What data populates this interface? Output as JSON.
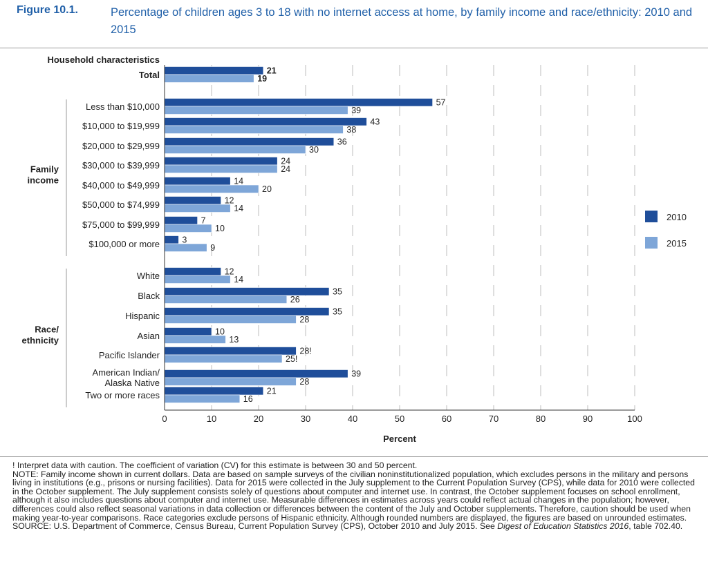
{
  "figure": {
    "number": "Figure 10.1.",
    "title": "Percentage of children ages 3 to 18 with no internet access at home, by family income and race/ethnicity: 2010 and 2015"
  },
  "colors": {
    "y2010": "#1f4e9a",
    "y2015": "#7ea6d8",
    "gridline": "#bdbdbd",
    "title": "#1f5fa8"
  },
  "chart_data": {
    "type": "bar",
    "orientation": "horizontal",
    "title": "",
    "xlabel": "Percent",
    "ylabel": "Household characteristics",
    "xlim": [
      0,
      100
    ],
    "xticks": [
      0,
      10,
      20,
      30,
      40,
      50,
      60,
      70,
      80,
      90,
      100
    ],
    "grid": true,
    "legend_position": "right",
    "series_names": [
      "2010",
      "2015"
    ],
    "groups": [
      {
        "label": "",
        "categories": [
          {
            "label": "Total",
            "bold": true,
            "v2010": 21,
            "v2015": 19,
            "l2010": "21",
            "l2015": "19"
          }
        ]
      },
      {
        "label": "Family income",
        "categories": [
          {
            "label": "Less than $10,000",
            "v2010": 57,
            "v2015": 39,
            "l2010": "57",
            "l2015": "39"
          },
          {
            "label": "$10,000 to $19,999",
            "v2010": 43,
            "v2015": 38,
            "l2010": "43",
            "l2015": "38"
          },
          {
            "label": "$20,000 to $29,999",
            "v2010": 36,
            "v2015": 30,
            "l2010": "36",
            "l2015": "30"
          },
          {
            "label": "$30,000 to $39,999",
            "v2010": 24,
            "v2015": 24,
            "l2010": "24",
            "l2015": "24"
          },
          {
            "label": "$40,000 to $49,999",
            "v2010": 14,
            "v2015": 20,
            "l2010": "14",
            "l2015": "20"
          },
          {
            "label": "$50,000 to $74,999",
            "v2010": 12,
            "v2015": 14,
            "l2010": "12",
            "l2015": "14"
          },
          {
            "label": "$75,000 to $99,999",
            "v2010": 7,
            "v2015": 10,
            "l2010": "7",
            "l2015": "10"
          },
          {
            "label": "$100,000 or more",
            "v2010": 3,
            "v2015": 9,
            "l2010": "3",
            "l2015": "9"
          }
        ]
      },
      {
        "label": "Race/ ethnicity",
        "categories": [
          {
            "label": "White",
            "v2010": 12,
            "v2015": 14,
            "l2010": "12",
            "l2015": "14"
          },
          {
            "label": "Black",
            "v2010": 35,
            "v2015": 26,
            "l2010": "35",
            "l2015": "26"
          },
          {
            "label": "Hispanic",
            "v2010": 35,
            "v2015": 28,
            "l2010": "35",
            "l2015": "28"
          },
          {
            "label": "Asian",
            "v2010": 10,
            "v2015": 13,
            "l2010": "10",
            "l2015": "13"
          },
          {
            "label": "Pacific Islander",
            "v2010": 28,
            "v2015": 25,
            "l2010": "28!",
            "l2015": "25!"
          },
          {
            "label": "American Indian/ Alaska Native",
            "v2010": 39,
            "v2015": 28,
            "l2010": "39",
            "l2015": "28"
          },
          {
            "label": "Two or more races",
            "v2010": 21,
            "v2015": 16,
            "l2010": "21",
            "l2015": "16"
          }
        ]
      }
    ]
  },
  "notes": {
    "caution": "! Interpret data with caution. The coefficient of variation (CV) for this estimate is between 30 and 50 percent.",
    "note": "NOTE: Family income shown in current dollars. Data are based on sample surveys of the civilian noninstitutionalized population, which excludes persons in the military and persons living in institutions (e.g., prisons or nursing facilities). Data for 2015 were collected in the July supplement to the Current Population Survey (CPS), while data for 2010 were collected in the October supplement. The July supplement consists solely of questions about computer and internet use. In contrast, the October supplement focuses on school enrollment, although it also includes questions about computer and internet use. Measurable differences in estimates across years could reflect actual changes in the population; however, differences could also reflect seasonal variations in data collection or differences between the content of the July and October supplements. Therefore, caution should be used when making year-to-year comparisons. Race categories exclude persons of Hispanic ethnicity. Although rounded numbers are displayed, the figures are based on unrounded estimates.",
    "source_prefix": "SOURCE: U.S. Department of Commerce, Census Bureau, Current Population Survey (CPS), October 2010 and July 2015. See ",
    "source_italic": "Digest of Education Statistics 2016",
    "source_suffix": ", table 702.40."
  }
}
